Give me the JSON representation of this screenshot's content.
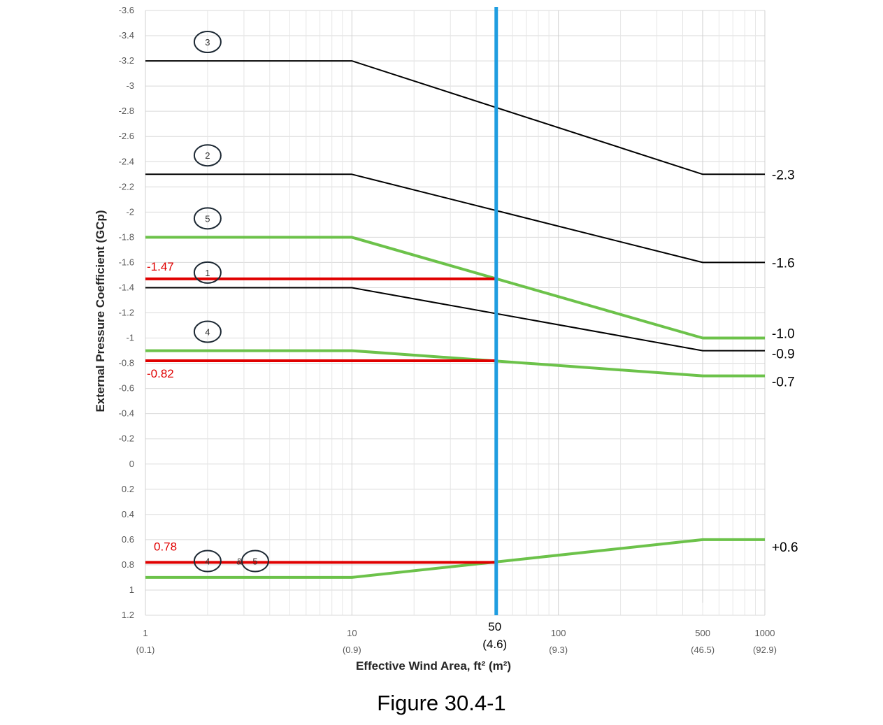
{
  "caption": "Figure 30.4-1",
  "chart_data": {
    "type": "line",
    "title": "",
    "xlabel": "Effective Wind Area, ft² (m²)",
    "ylabel": "External Pressure Coefficient (GCp)",
    "xscale": "log",
    "xlim": [
      1,
      1000
    ],
    "ylim": [
      -3.6,
      1.2
    ],
    "y_inverted": true,
    "grid": true,
    "x_ticks": [
      {
        "value": 1,
        "label": "1",
        "sublabel": "(0.1)"
      },
      {
        "value": 10,
        "label": "10",
        "sublabel": "(0.9)"
      },
      {
        "value": 100,
        "label": "100",
        "sublabel": "(9.3)"
      },
      {
        "value": 500,
        "label": "500",
        "sublabel": "(46.5)"
      },
      {
        "value": 1000,
        "label": "1000",
        "sublabel": "(92.9)"
      }
    ],
    "y_ticks": [
      "-3.6",
      "-3.4",
      "-3.2",
      "-3",
      "-2.8",
      "-2.6",
      "-2.4",
      "-2.2",
      "-2",
      "-1.8",
      "-1.6",
      "-1.4",
      "-1.2",
      "-1",
      "-0.8",
      "-0.6",
      "-0.4",
      "-0.2",
      "0",
      "0.2",
      "0.4",
      "0.6",
      "0.8",
      "1",
      "1.2"
    ],
    "series": [
      {
        "zone": "3",
        "color": "#000000",
        "x": [
          1,
          10,
          500,
          1000
        ],
        "y": [
          -3.2,
          -3.2,
          -2.3,
          -2.3
        ],
        "end_label": "-2.3"
      },
      {
        "zone": "2",
        "color": "#000000",
        "x": [
          1,
          10,
          500,
          1000
        ],
        "y": [
          -2.3,
          -2.3,
          -1.6,
          -1.6
        ],
        "end_label": "-1.6"
      },
      {
        "zone": "1",
        "color": "#000000",
        "x": [
          1,
          10,
          500,
          1000
        ],
        "y": [
          -1.4,
          -1.4,
          -0.9,
          -0.9
        ],
        "end_label": "-0.9"
      },
      {
        "zone": "5",
        "color": "#6cc24a",
        "x": [
          1,
          10,
          500,
          1000
        ],
        "y": [
          -1.8,
          -1.8,
          -1.0,
          -1.0
        ],
        "end_label": "-1.0"
      },
      {
        "zone": "4",
        "color": "#6cc24a",
        "x": [
          1,
          10,
          500,
          1000
        ],
        "y": [
          -0.9,
          -0.9,
          -0.7,
          -0.7
        ],
        "end_label": "-0.7"
      },
      {
        "zone": "4&5",
        "color": "#6cc24a",
        "x": [
          1,
          10,
          500,
          1000
        ],
        "y": [
          0.9,
          0.9,
          0.6,
          0.6
        ],
        "end_label": "+0.6"
      }
    ],
    "zone_markers": [
      {
        "label": "3",
        "x": 2,
        "y": -3.35
      },
      {
        "label": "2",
        "x": 2,
        "y": -2.45
      },
      {
        "label": "5",
        "x": 2,
        "y": -1.95
      },
      {
        "label": "1",
        "x": 2,
        "y": -1.52
      },
      {
        "label": "4",
        "x": 2,
        "y": -1.05
      },
      {
        "label": "4",
        "x": 2,
        "y": 0.77
      },
      {
        "label": "5",
        "x": 3.4,
        "y": 0.77
      }
    ],
    "ampersand": {
      "label": "&",
      "x": 2.85,
      "y": 0.77
    },
    "vertical_marker": {
      "x": 50,
      "color": "#1f9de0",
      "label": "50",
      "sublabel": "(4.6)"
    },
    "annotations": [
      {
        "label": "-1.47",
        "value": -1.47,
        "color": "#e00000"
      },
      {
        "label": "-0.82",
        "value": -0.82,
        "color": "#e00000"
      },
      {
        "label": "0.78",
        "value": 0.78,
        "color": "#e00000"
      }
    ]
  }
}
